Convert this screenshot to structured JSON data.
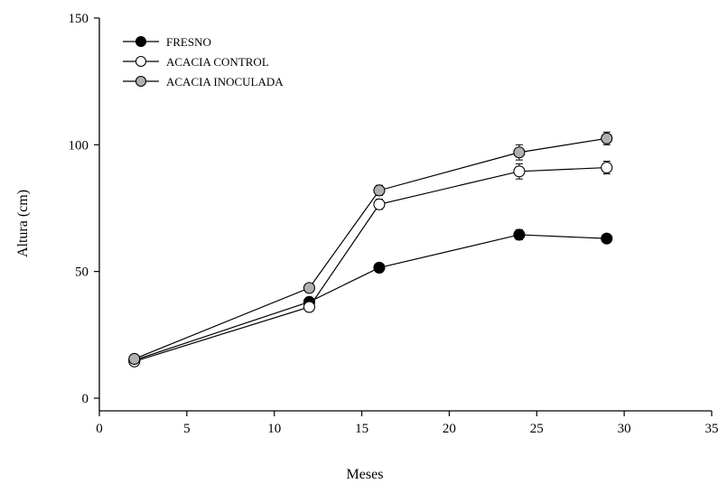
{
  "chart_data": {
    "type": "line",
    "title": "",
    "xlabel": "Meses",
    "ylabel": "Altura (cm)",
    "xlim": [
      0,
      35
    ],
    "ylim": [
      -5,
      150
    ],
    "xticks": [
      0,
      5,
      10,
      15,
      20,
      25,
      30,
      35
    ],
    "yticks": [
      0,
      50,
      100,
      150
    ],
    "grid": false,
    "legend_position": "top-left",
    "series": [
      {
        "name": "FRESNO",
        "marker": "filled-circle",
        "marker_color": "#000000",
        "x": [
          2,
          12,
          16,
          24,
          29
        ],
        "y": [
          15,
          38,
          51.5,
          64.5,
          63
        ],
        "error": [
          1,
          1.5,
          1.5,
          2,
          1.5
        ]
      },
      {
        "name": "ACACIA CONTROL",
        "marker": "open-circle",
        "marker_color": "#ffffff",
        "x": [
          2,
          12,
          16,
          24,
          29
        ],
        "y": [
          14.5,
          36,
          76.5,
          89.5,
          91
        ],
        "error": [
          1,
          1.5,
          2,
          3,
          2.5
        ]
      },
      {
        "name": "ACACIA INOCULADA",
        "marker": "gray-circle",
        "marker_color": "#b0b0b0",
        "x": [
          2,
          12,
          16,
          24,
          29
        ],
        "y": [
          15.5,
          43.5,
          82,
          97,
          102.5
        ],
        "error": [
          1,
          1.5,
          2,
          3,
          2.5
        ]
      }
    ]
  }
}
